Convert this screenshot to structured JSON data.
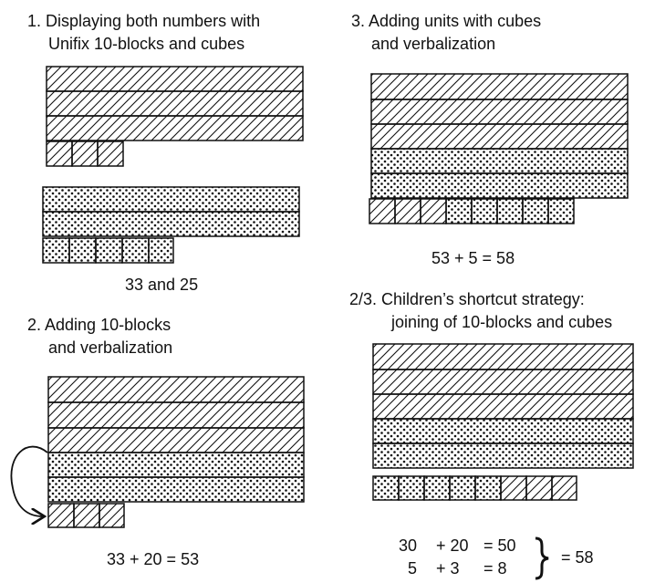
{
  "panels": {
    "p1": {
      "line1": "1. Displaying both numbers with",
      "line2": "Unifix 10-blocks and cubes",
      "caption": "33 and 25"
    },
    "p2": {
      "line1": "2. Adding 10-blocks",
      "line2": "and verbalization",
      "caption": "33 + 20 = 53"
    },
    "p3": {
      "line1": "3. Adding units with cubes",
      "line2": "and verbalization",
      "caption": "53 + 5 = 58"
    },
    "p4": {
      "line1": "2/3. Children’s shortcut strategy:",
      "line2": "joining of 10-blocks and cubes",
      "eq1": {
        "a": "30",
        "op": "+ 20",
        "eq": "= 50"
      },
      "eq2": {
        "a": "5",
        "op": "+  3",
        "eq": "=   8"
      },
      "total": "= 58"
    }
  },
  "colors": {
    "ink": "#111111",
    "background": "#ffffff"
  }
}
